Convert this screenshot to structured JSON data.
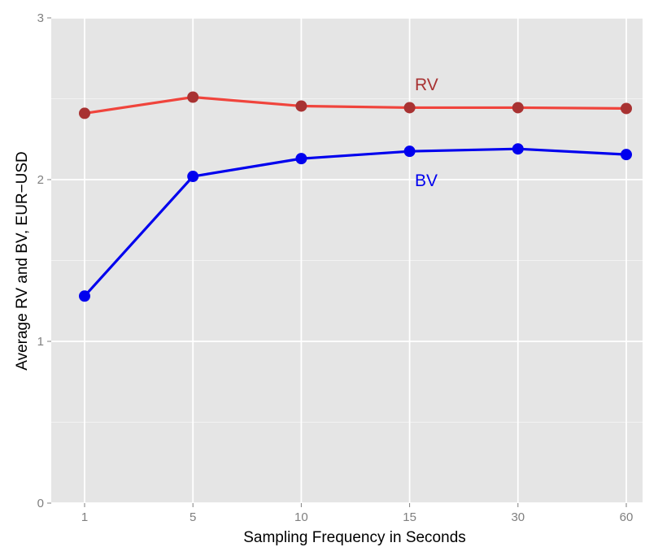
{
  "chart_data": {
    "type": "line",
    "categories": [
      "1",
      "5",
      "10",
      "15",
      "30",
      "60"
    ],
    "series": [
      {
        "name": "RV",
        "values": [
          2.41,
          2.51,
          2.455,
          2.445,
          2.445,
          2.44
        ],
        "line_color": "#f0443c",
        "point_color": "#a83232"
      },
      {
        "name": "BV",
        "values": [
          1.28,
          2.02,
          2.13,
          2.175,
          2.19,
          2.155
        ],
        "line_color": "#0000ee",
        "point_color": "#0000ee"
      }
    ],
    "xlabel": "Sampling Frequency in Seconds",
    "ylabel": "Average RV and BV, EUR−USD",
    "ylim": [
      0,
      3
    ],
    "yticks": [
      "0",
      "1",
      "2",
      "3"
    ],
    "grid": true,
    "legend": "direct labels near lines",
    "background": "#e5e5e5",
    "grid_color": "#ffffff"
  }
}
